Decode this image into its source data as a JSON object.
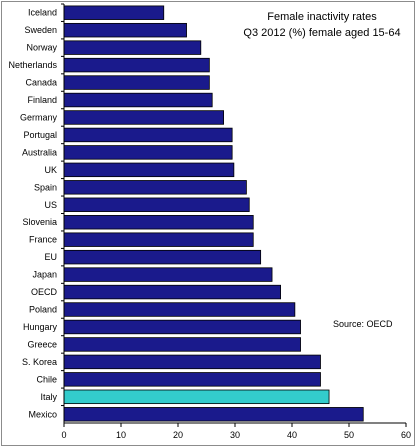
{
  "chart_data": {
    "type": "bar",
    "orientation": "horizontal",
    "title": "Female inactivity rates",
    "subtitle": "Q3 2012 (%) female aged 15-64",
    "source": "Source: OECD",
    "categories": [
      "Iceland",
      "Sweden",
      "Norway",
      "Netherlands",
      "Canada",
      "Finland",
      "Germany",
      "Portugal",
      "Australia",
      "UK",
      "Spain",
      "US",
      "Slovenia",
      "France",
      "EU",
      "Japan",
      "OECD",
      "Poland",
      "Hungary",
      "Greece",
      "S. Korea",
      "Chile",
      "Italy",
      "Mexico"
    ],
    "values": [
      17.5,
      21.5,
      24.0,
      25.5,
      25.5,
      26.0,
      28.0,
      29.5,
      29.5,
      29.8,
      32.0,
      32.5,
      33.2,
      33.2,
      34.5,
      36.5,
      38.0,
      40.5,
      41.5,
      41.5,
      45.0,
      45.0,
      46.5,
      52.5
    ],
    "xlim": [
      0,
      60
    ],
    "xticks": [
      "0",
      "10",
      "20",
      "30",
      "40",
      "50",
      "60"
    ],
    "grid": false,
    "colors": {
      "bar": "#1a1a8c",
      "highlight": "#33cccc",
      "bar_edge": "#000000",
      "axis": "#000000"
    },
    "highlight_category": "Italy"
  }
}
